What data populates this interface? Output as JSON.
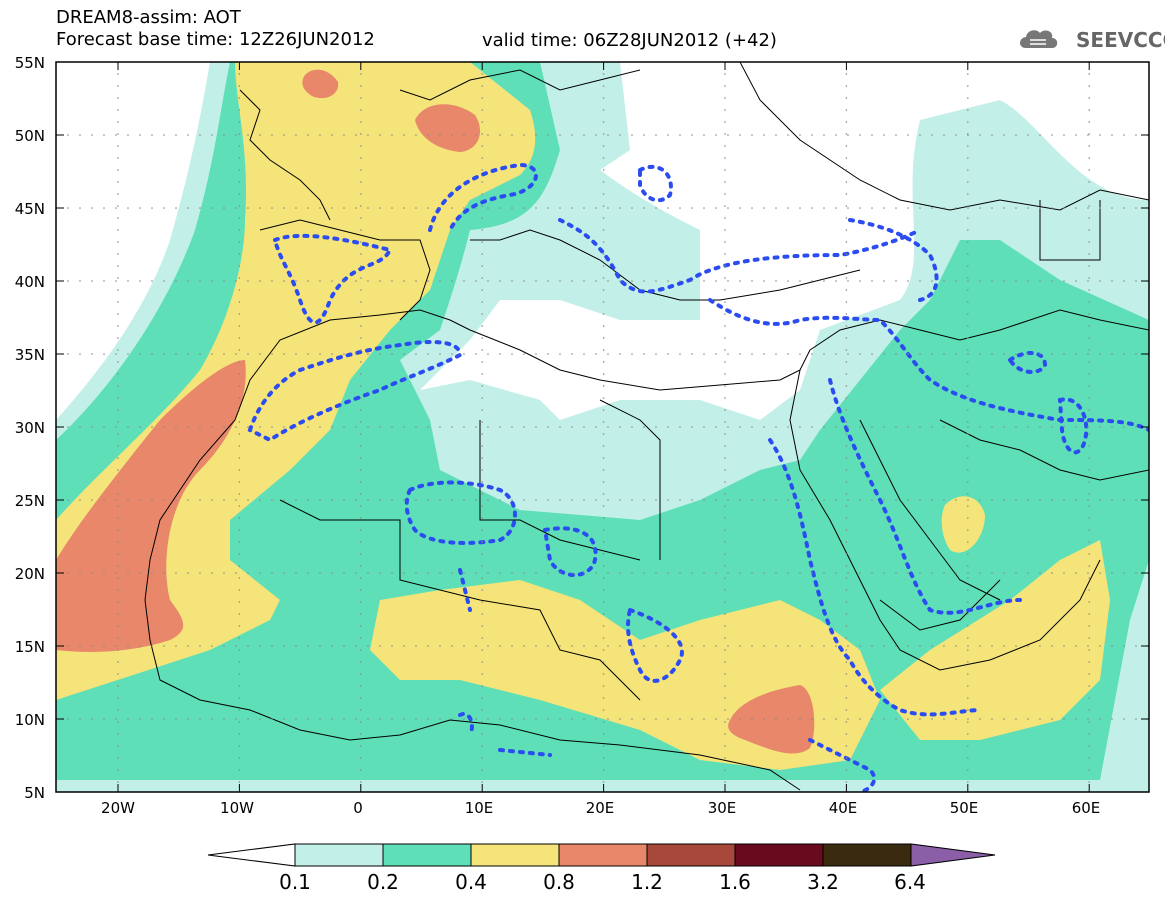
{
  "header": {
    "title": "DREAM8-assim: AOT",
    "base_time": "Forecast base time: 12Z26JUN2012",
    "valid_time": "valid time: 06Z28JUN2012 (+42)"
  },
  "logo": {
    "text": "SEEVCCC",
    "icon": "cloud-icon"
  },
  "axes": {
    "lat_labels": [
      "55N",
      "50N",
      "45N",
      "40N",
      "35N",
      "30N",
      "25N",
      "20N",
      "15N",
      "10N",
      "5N"
    ],
    "lon_labels": [
      "20W",
      "10W",
      "0",
      "10E",
      "20E",
      "30E",
      "40E",
      "50E",
      "60E"
    ]
  },
  "colorbar": {
    "labels": [
      "0.1",
      "0.2",
      "0.4",
      "0.8",
      "1.2",
      "1.6",
      "3.2",
      "6.4"
    ],
    "colors": [
      "#ffffff",
      "#c2f0e8",
      "#5fdfb8",
      "#f5e47a",
      "#e8876a",
      "#a8483a",
      "#6a0a1e",
      "#3a2a10",
      "#8a5fa8"
    ]
  },
  "colors": {
    "aot_0_1": "#c2f0e8",
    "aot_0_2": "#5fdfb8",
    "aot_0_4": "#f5e47a",
    "aot_0_8": "#e8876a",
    "contour": "#2a4cf0",
    "border": "#000000"
  }
}
